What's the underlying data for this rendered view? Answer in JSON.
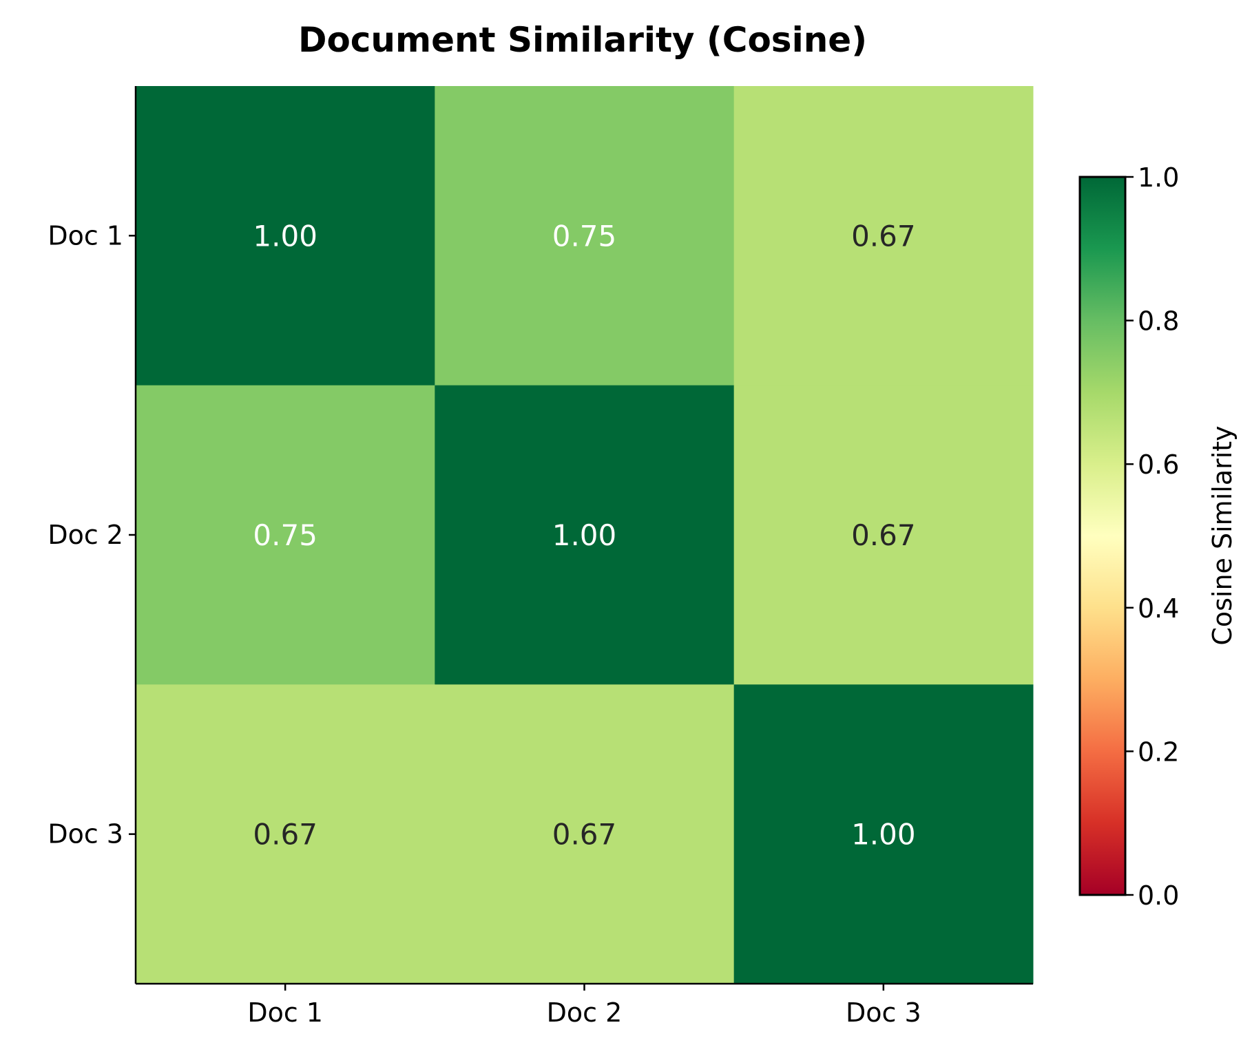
{
  "chart_data": {
    "type": "heatmap",
    "title": "Document Similarity (Cosine)",
    "x_categories": [
      "Doc 1",
      "Doc 2",
      "Doc 3"
    ],
    "y_categories": [
      "Doc 1",
      "Doc 2",
      "Doc 3"
    ],
    "values": [
      [
        1.0,
        0.75,
        0.67
      ],
      [
        0.75,
        1.0,
        0.67
      ],
      [
        0.67,
        0.67,
        1.0
      ]
    ],
    "value_labels": [
      [
        "1.00",
        "0.75",
        "0.67"
      ],
      [
        "0.75",
        "1.00",
        "0.67"
      ],
      [
        "0.67",
        "0.67",
        "1.00"
      ]
    ],
    "colormap": "RdYlGn",
    "colorbar": {
      "label": "Cosine Similarity",
      "range": [
        0,
        1
      ],
      "ticks": [
        "0.0",
        "0.2",
        "0.4",
        "0.6",
        "0.8",
        "1.0"
      ]
    },
    "colors": {
      "1.00": "#006837",
      "0.75": "#84ca66",
      "0.67": "#b7e075"
    }
  }
}
